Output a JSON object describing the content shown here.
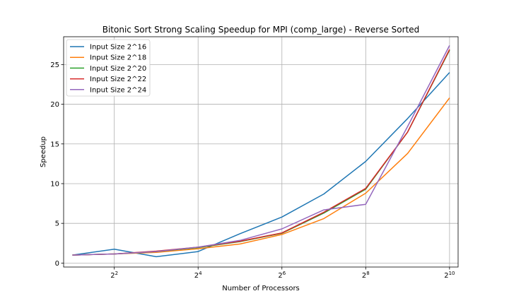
{
  "chart_data": {
    "type": "line",
    "title": "Bitonic Sort Strong Scaling Speedup for MPI (comp_large) - Reverse Sorted",
    "xlabel": "Number of Processors",
    "ylabel": "Speedup",
    "x_scale": "log2",
    "x": [
      2,
      4,
      8,
      16,
      32,
      64,
      128,
      256,
      512,
      1024
    ],
    "xlim": [
      1.73,
      1180
    ],
    "ylim": [
      -0.5,
      28.5
    ],
    "xticks": [
      {
        "value": 4,
        "base": "2",
        "exp": "2"
      },
      {
        "value": 16,
        "base": "2",
        "exp": "4"
      },
      {
        "value": 64,
        "base": "2",
        "exp": "6"
      },
      {
        "value": 256,
        "base": "2",
        "exp": "8"
      },
      {
        "value": 1024,
        "base": "2",
        "exp": "10"
      }
    ],
    "yticks": [
      {
        "value": 0,
        "label": "0"
      },
      {
        "value": 5,
        "label": "5"
      },
      {
        "value": 10,
        "label": "10"
      },
      {
        "value": 15,
        "label": "15"
      },
      {
        "value": 20,
        "label": "20"
      },
      {
        "value": 25,
        "label": "25"
      }
    ],
    "grid": true,
    "legend_position": "top-left",
    "series": [
      {
        "name": "Input Size 2^16",
        "color": "#1f77b4",
        "values": [
          1.0,
          1.75,
          0.8,
          1.45,
          3.7,
          5.8,
          8.7,
          12.8,
          18.2,
          24.0
        ]
      },
      {
        "name": "Input Size 2^18",
        "color": "#ff7f0e",
        "values": [
          1.0,
          1.15,
          1.35,
          1.8,
          2.4,
          3.6,
          5.6,
          8.8,
          13.8,
          20.8
        ]
      },
      {
        "name": "Input Size 2^20",
        "color": "#2ca02c",
        "values": [
          1.0,
          1.15,
          1.45,
          1.95,
          2.7,
          3.75,
          6.3,
          9.3,
          16.5,
          26.8
        ]
      },
      {
        "name": "Input Size 2^22",
        "color": "#d62728",
        "values": [
          1.0,
          1.15,
          1.5,
          2.0,
          2.75,
          3.8,
          6.4,
          9.4,
          16.5,
          26.9
        ]
      },
      {
        "name": "Input Size 2^24",
        "color": "#9467bd",
        "values": [
          1.0,
          1.15,
          1.45,
          2.0,
          2.85,
          4.3,
          6.7,
          7.4,
          17.2,
          27.4
        ]
      }
    ]
  }
}
